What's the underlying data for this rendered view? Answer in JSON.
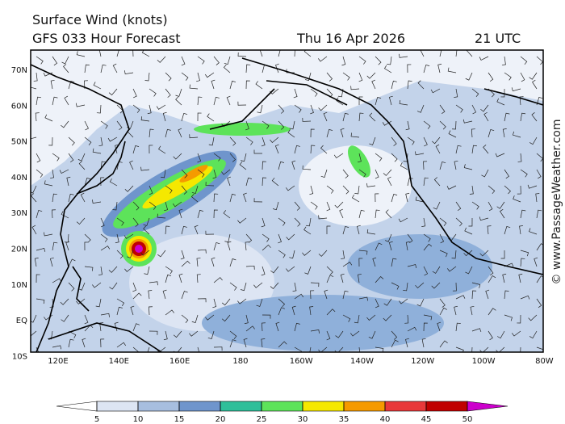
{
  "header": {
    "title": "Surface Wind (knots)",
    "subtitle": "GFS 033 Hour Forecast",
    "date": "Thu 16 Apr 2026",
    "time": "21 UTC"
  },
  "map": {
    "lat_labels": [
      "70N",
      "60N",
      "50N",
      "40N",
      "30N",
      "20N",
      "10N",
      "EQ",
      "10S"
    ],
    "lon_labels": [
      "120E",
      "140E",
      "160E",
      "180",
      "160W",
      "140W",
      "120W",
      "100W",
      "80W"
    ]
  },
  "colorbar": {
    "ticks": [
      5,
      10,
      15,
      20,
      25,
      30,
      35,
      40,
      45,
      50
    ],
    "colors": [
      "#ffffff",
      "#dde5f3",
      "#a7bedf",
      "#6f95cc",
      "#2fbf9a",
      "#5de35a",
      "#f5e800",
      "#f59a00",
      "#e8383a",
      "#c00000",
      "#cc00cc"
    ]
  },
  "watermark": "© www.PassageWeather.com"
}
